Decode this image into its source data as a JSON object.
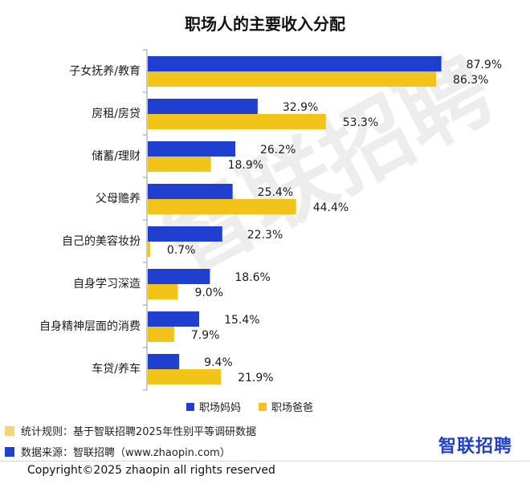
{
  "chart_data": {
    "type": "bar",
    "orientation": "horizontal",
    "title": "职场人的主要收入分配",
    "categories": [
      "子女抚养/教育",
      "房租/房贷",
      "储蓄/理财",
      "父母赡养",
      "自己的美容妆扮",
      "自身学习深造",
      "自身精神层面的消费",
      "车贷/养车"
    ],
    "series": [
      {
        "name": "职场妈妈",
        "values": [
          87.9,
          32.9,
          26.2,
          25.4,
          22.3,
          18.6,
          15.4,
          9.4
        ],
        "color": "#1f3fd1"
      },
      {
        "name": "职场爸爸",
        "values": [
          86.3,
          53.3,
          18.9,
          44.4,
          0.7,
          9.0,
          7.9,
          21.9
        ],
        "color": "#f2c318"
      }
    ],
    "value_suffix": "%",
    "xlim": [
      0,
      100
    ],
    "legend_position": "bottom"
  },
  "notes": [
    {
      "text": "统计规则：基于智联招聘2025年性别平等调研数据",
      "color": "#f5d675"
    },
    {
      "text": "数据来源：智联招聘（www.zhaopin.com）",
      "color": "#1f3fd1"
    }
  ],
  "brand": "智联招聘",
  "watermark": "智联招聘",
  "copyright": "Copyright©2025 zhaopin all rights reserved"
}
